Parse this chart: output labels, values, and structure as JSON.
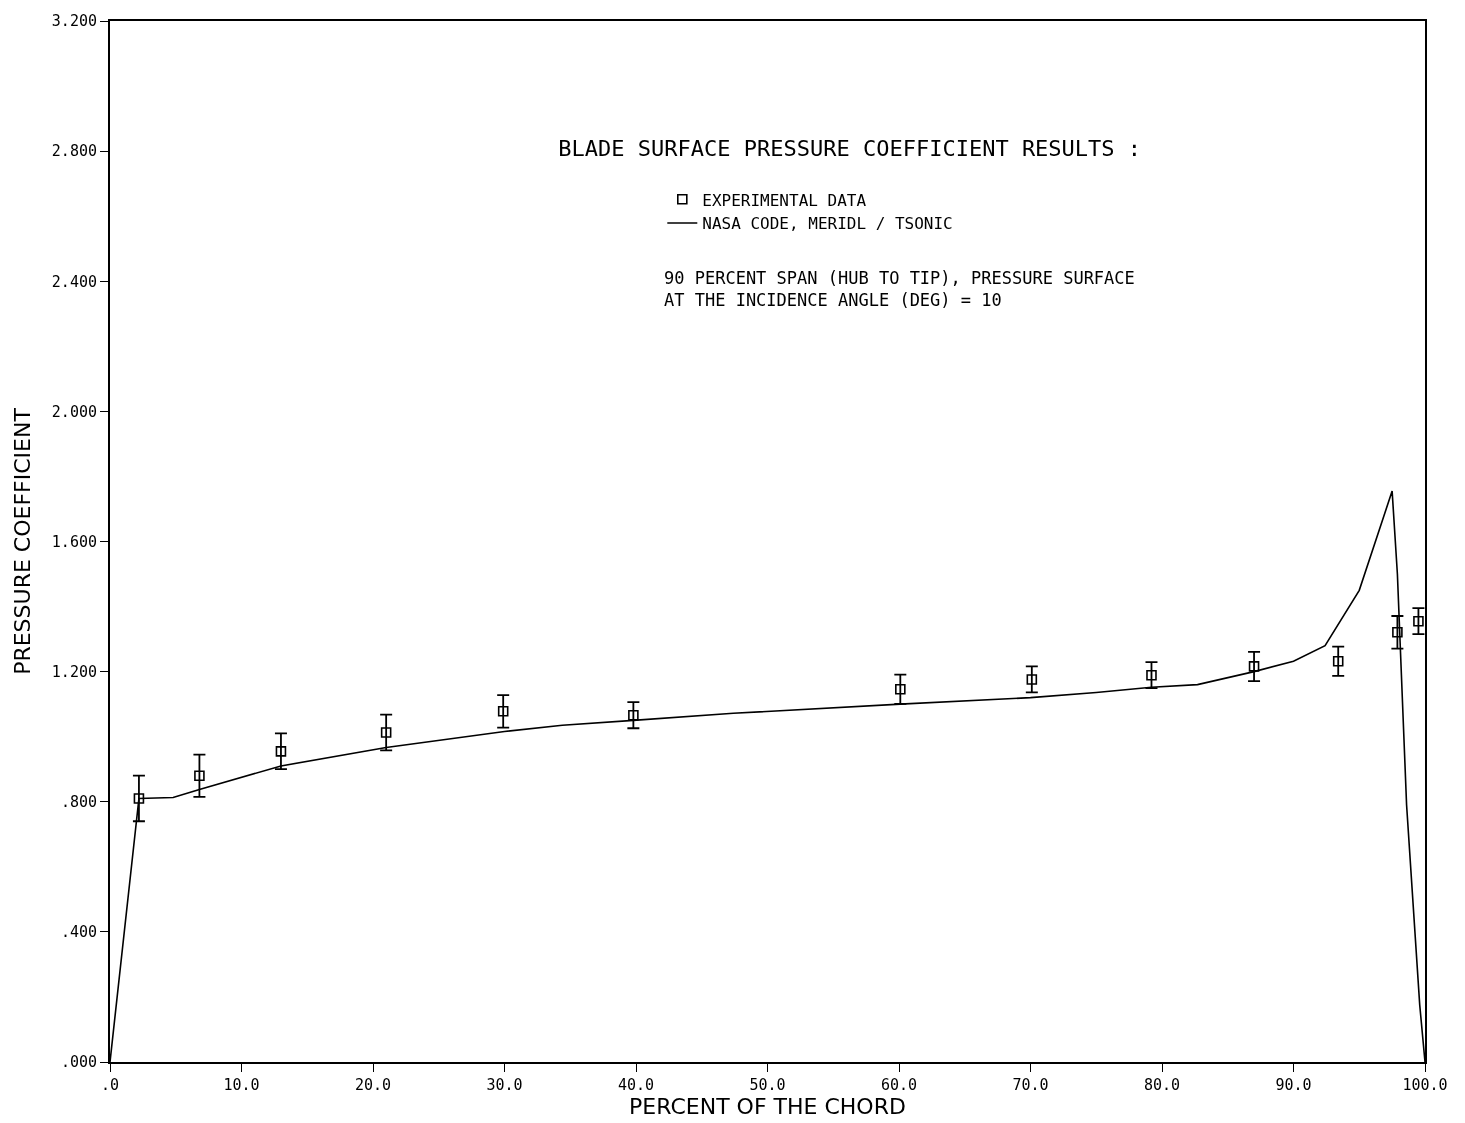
{
  "chart_data": {
    "type": "scatter",
    "title": "BLADE SURFACE PRESSURE COEFFICIENT RESULTS :",
    "subtitle": "90 PERCENT SPAN (HUB TO TIP), PRESSURE SURFACE\nAT THE INCIDENCE ANGLE (DEG) = 10",
    "xlabel": "PERCENT OF THE CHORD",
    "ylabel": "PRESSURE COEFFICIENT",
    "xlim": [
      0,
      100
    ],
    "ylim": [
      0,
      3.2
    ],
    "xticks": [
      {
        "value": 0,
        "label": ".0"
      },
      {
        "value": 10,
        "label": "10.0"
      },
      {
        "value": 20,
        "label": "20.0"
      },
      {
        "value": 30,
        "label": "30.0"
      },
      {
        "value": 40,
        "label": "40.0"
      },
      {
        "value": 50,
        "label": "50.0"
      },
      {
        "value": 60,
        "label": "60.0"
      },
      {
        "value": 70,
        "label": "70.0"
      },
      {
        "value": 80,
        "label": "80.0"
      },
      {
        "value": 90,
        "label": "90.0"
      },
      {
        "value": 100,
        "label": "100.0"
      }
    ],
    "yticks": [
      {
        "value": 0,
        "label": ".000"
      },
      {
        "value": 0.4,
        "label": ".400"
      },
      {
        "value": 0.8,
        "label": ".800"
      },
      {
        "value": 1.2,
        "label": "1.200"
      },
      {
        "value": 1.6,
        "label": "1.600"
      },
      {
        "value": 2.0,
        "label": "2.000"
      },
      {
        "value": 2.4,
        "label": "2.400"
      },
      {
        "value": 2.8,
        "label": "2.800"
      },
      {
        "value": 3.2,
        "label": "3.200"
      }
    ],
    "grid": false,
    "legend": "top",
    "series": [
      {
        "name": "EXPERIMENTAL DATA",
        "marker": "square",
        "color": "#000000",
        "x": [
          2.2,
          6.8,
          13.0,
          21.0,
          29.9,
          39.8,
          60.1,
          70.1,
          79.2,
          87.0,
          93.4,
          97.9,
          99.5
        ],
        "values": [
          0.81,
          0.88,
          0.955,
          1.013,
          1.078,
          1.066,
          1.146,
          1.176,
          1.189,
          1.216,
          1.232,
          1.321,
          1.355
        ],
        "errors": [
          0.07,
          0.065,
          0.055,
          0.055,
          0.05,
          0.04,
          0.045,
          0.04,
          0.04,
          0.045,
          0.045,
          0.05,
          0.04
        ]
      },
      {
        "name": "NASA CODE, MERIDL / TSONIC",
        "type": "line",
        "marker": "none",
        "line_style": "solid",
        "color": "#000000",
        "x": [
          0,
          2.2,
          4.8,
          6.8,
          13,
          21,
          30,
          34.4,
          39.8,
          47.4,
          60.1,
          70,
          75,
          79.2,
          82.7,
          87,
          90,
          92.4,
          95,
          97.5,
          97.9,
          98.6,
          99.6,
          100
        ],
        "values": [
          0,
          0.81,
          0.813,
          0.838,
          0.91,
          0.967,
          1.016,
          1.035,
          1.05,
          1.072,
          1.1,
          1.12,
          1.136,
          1.152,
          1.16,
          1.2,
          1.232,
          1.28,
          1.45,
          1.755,
          1.5,
          0.79,
          0.175,
          0
        ]
      }
    ]
  }
}
